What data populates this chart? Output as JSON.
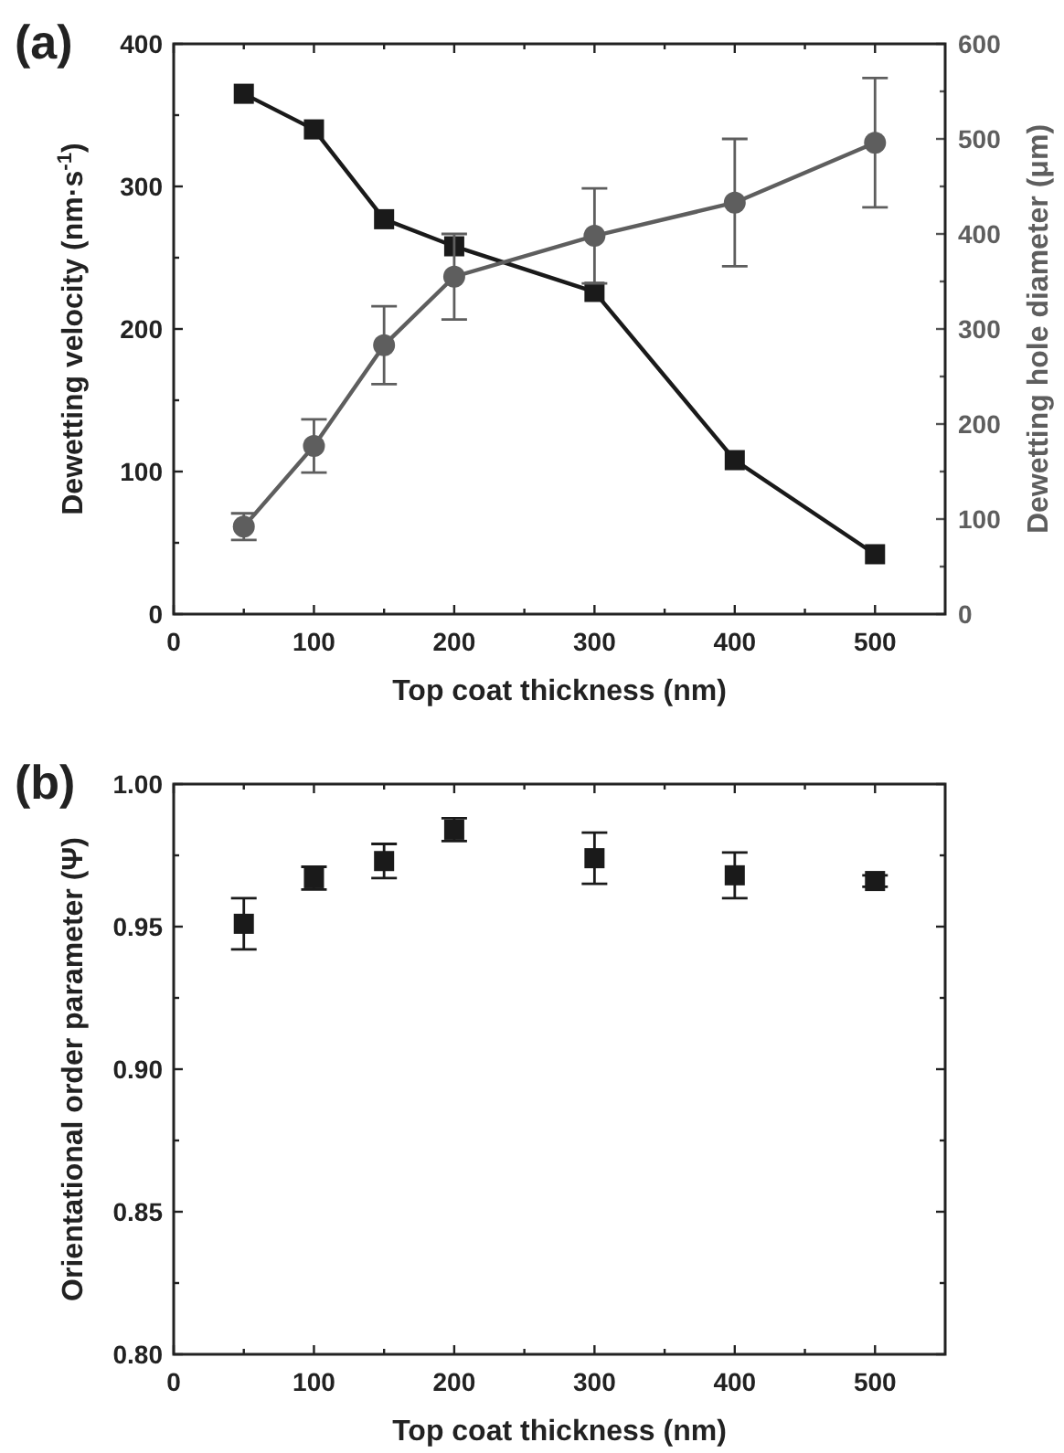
{
  "chart_data": [
    {
      "type": "line",
      "title": "(a)",
      "xlabel": "Top coat thickness (nm)",
      "ylabel": "Dewetting velocity (nm·s$^{-1}$)",
      "y2label": "Dewetting hole diameter (μm)",
      "x": [
        50,
        100,
        150,
        200,
        300,
        400,
        500
      ],
      "xlim": [
        0,
        550
      ],
      "xticks": [
        0,
        {
          "value": 50,
          "label": null
        },
        100,
        {
          "value": 150,
          "label": null
        },
        200,
        {
          "value": 250,
          "label": null
        },
        300,
        {
          "value": 350,
          "label": null
        },
        400,
        {
          "value": 450,
          "label": null
        },
        500
      ],
      "ylim": [
        0,
        400
      ],
      "yticks": [
        0,
        {
          "value": 50,
          "label": null
        },
        100,
        {
          "value": 150,
          "label": null
        },
        200,
        {
          "value": 250,
          "label": null
        },
        300,
        {
          "value": 350,
          "label": null
        },
        400
      ],
      "y2lim": [
        0,
        600
      ],
      "y2ticks": [
        0,
        {
          "value": 50,
          "label": null
        },
        100,
        {
          "value": 150,
          "label": null
        },
        200,
        {
          "value": 250,
          "label": null
        },
        300,
        {
          "value": 350,
          "label": null
        },
        400,
        {
          "value": 450,
          "label": null
        },
        500,
        {
          "value": 550,
          "label": null
        },
        600
      ],
      "grid": false,
      "line_style": "solid",
      "series": [
        {
          "color": "#1a1a1a",
          "marker": "square",
          "values": [
            365,
            340,
            277,
            258,
            226,
            108,
            42
          ]
        },
        {
          "color": "#5e5e5e",
          "marker": "circle",
          "axis": "y2",
          "values": [
            92,
            177,
            283,
            355,
            398,
            433,
            496
          ],
          "errors": [
            14,
            28,
            41,
            45,
            50,
            67,
            68
          ]
        }
      ]
    },
    {
      "type": "scatter",
      "title": "(b)",
      "xlabel": "Top coat thickness (nm)",
      "ylabel": "Orientational order parameter (Ψ)",
      "x": [
        50,
        100,
        150,
        200,
        300,
        400,
        500
      ],
      "xlim": [
        0,
        550
      ],
      "xticks": [
        0,
        {
          "value": 50,
          "label": null
        },
        100,
        {
          "value": 150,
          "label": null
        },
        200,
        {
          "value": 250,
          "label": null
        },
        300,
        {
          "value": 350,
          "label": null
        },
        400,
        {
          "value": 450,
          "label": null
        },
        500
      ],
      "ylim": [
        0.8,
        1.0
      ],
      "yticks": [
        "0.80",
        {
          "value": 0.825,
          "label": null
        },
        {
          "value": 0.85,
          "label": "0.85"
        },
        {
          "value": 0.875,
          "label": null
        },
        {
          "value": 0.9,
          "label": "0.90"
        },
        {
          "value": 0.925,
          "label": null
        },
        {
          "value": 0.95,
          "label": "0.95"
        },
        {
          "value": 0.975,
          "label": null
        },
        {
          "value": 1.0,
          "label": "1.00"
        }
      ],
      "grid": false,
      "marker": "square",
      "series": [
        {
          "color": "#1a1a1a",
          "values": [
            0.951,
            0.967,
            0.973,
            0.984,
            0.974,
            0.968,
            0.966
          ],
          "errors": [
            0.009,
            0.004,
            0.006,
            0.004,
            0.009,
            0.008,
            0.002
          ]
        }
      ]
    }
  ]
}
